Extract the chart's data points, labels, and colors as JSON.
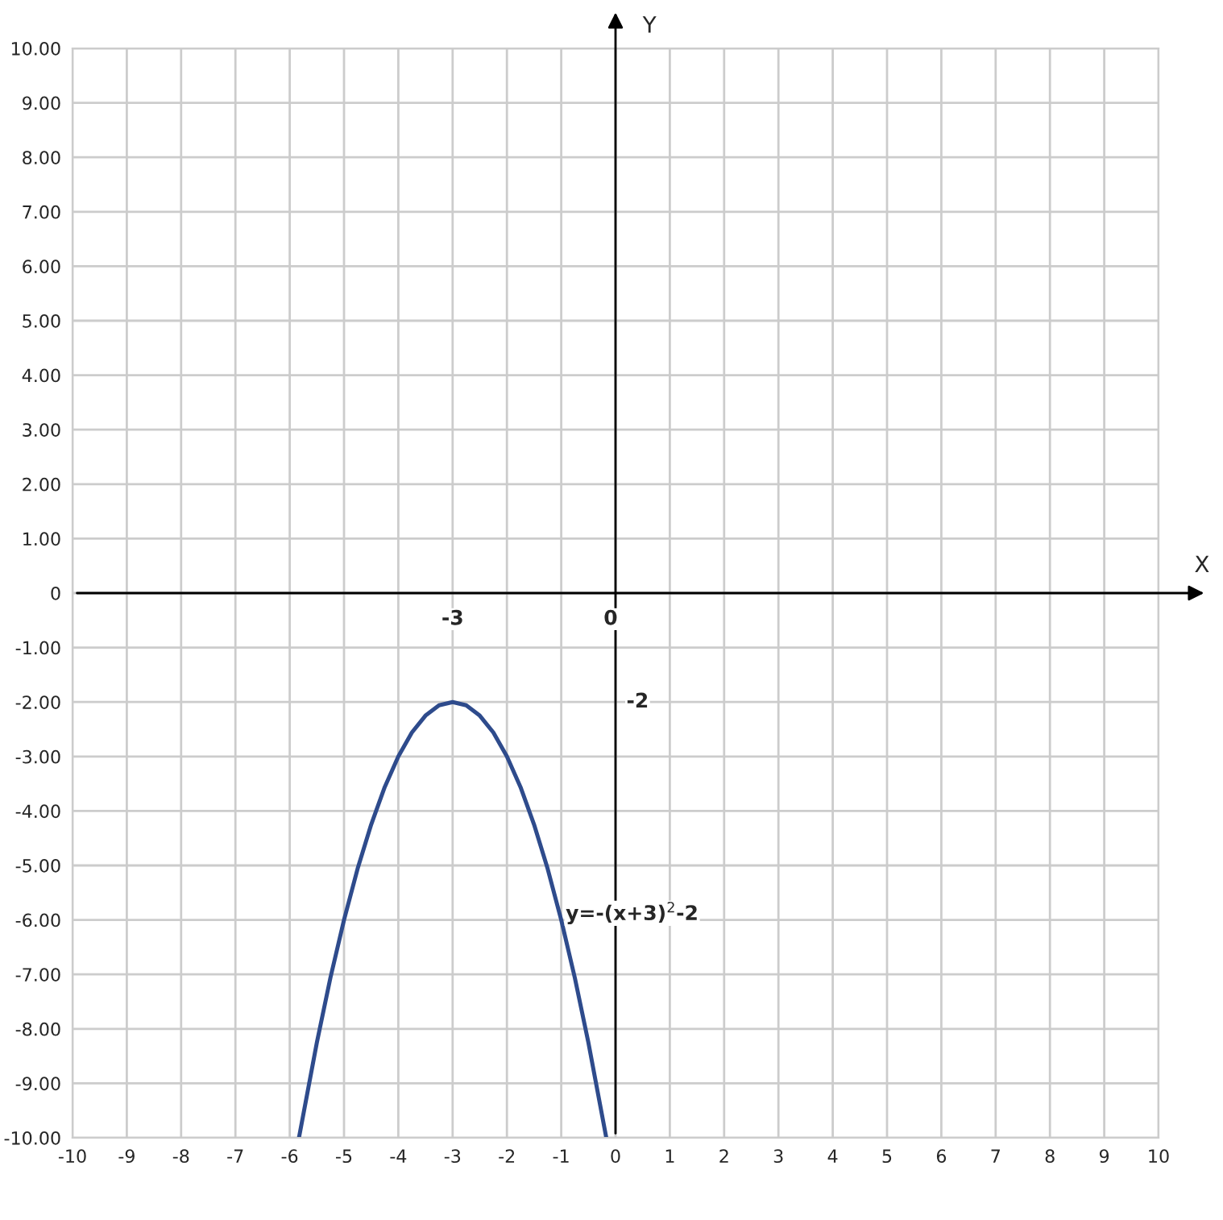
{
  "chart_data": {
    "type": "line",
    "xlabel": "X",
    "ylabel": "Y",
    "x": [
      -5.83,
      -5.5,
      -5.25,
      -5,
      -4.75,
      -4.5,
      -4.25,
      -4,
      -3.75,
      -3.5,
      -3.25,
      -3,
      -2.75,
      -2.5,
      -2.25,
      -2,
      -1.75,
      -1.5,
      -1.25,
      -1,
      -0.75,
      -0.5,
      -0.17
    ],
    "series": [
      {
        "color": "#2e4b8c",
        "values": [
          -10.0,
          -8.25,
          -7.06,
          -6,
          -5.06,
          -4.25,
          -3.56,
          -3,
          -2.56,
          -2.25,
          -2.06,
          -2,
          -2.06,
          -2.25,
          -2.56,
          -3,
          -3.56,
          -4.25,
          -5.06,
          -6,
          -7.06,
          -8.25,
          -10.0
        ]
      }
    ],
    "xlim": [
      -10,
      10
    ],
    "ylim": [
      -10,
      10
    ],
    "xticks": [
      -10,
      -9,
      -8,
      -7,
      -6,
      -5,
      -4,
      -3,
      -2,
      -1,
      0,
      1,
      2,
      3,
      4,
      5,
      6,
      7,
      8,
      9,
      10
    ],
    "yticks": [
      {
        "value": 10,
        "label": "10.00"
      },
      {
        "value": 9,
        "label": "9.00"
      },
      {
        "value": 8,
        "label": "8.00"
      },
      {
        "value": 7,
        "label": "7.00"
      },
      {
        "value": 6,
        "label": "6.00"
      },
      {
        "value": 5,
        "label": "5.00"
      },
      {
        "value": 4,
        "label": "4.00"
      },
      {
        "value": 3,
        "label": "3.00"
      },
      {
        "value": 2,
        "label": "2.00"
      },
      {
        "value": 1,
        "label": "1.00"
      },
      0,
      {
        "value": -1,
        "label": "-1.00"
      },
      {
        "value": -2,
        "label": "-2.00"
      },
      {
        "value": -3,
        "label": "-3.00"
      },
      {
        "value": -4,
        "label": "-4.00"
      },
      {
        "value": -5,
        "label": "-5.00"
      },
      {
        "value": -6,
        "label": "-6.00"
      },
      {
        "value": -7,
        "label": "-7.00"
      },
      {
        "value": -8,
        "label": "-8.00"
      },
      {
        "value": -9,
        "label": "-9.00"
      },
      {
        "value": -10,
        "label": "-10.00"
      }
    ],
    "grid": true,
    "marker": "none",
    "line_style": "solid",
    "annotations": [
      "-3",
      "0",
      "-2",
      {
        "text": "y=-(x+3)$^{2}$-2",
        "x": -1,
        "y": -6
      }
    ]
  }
}
